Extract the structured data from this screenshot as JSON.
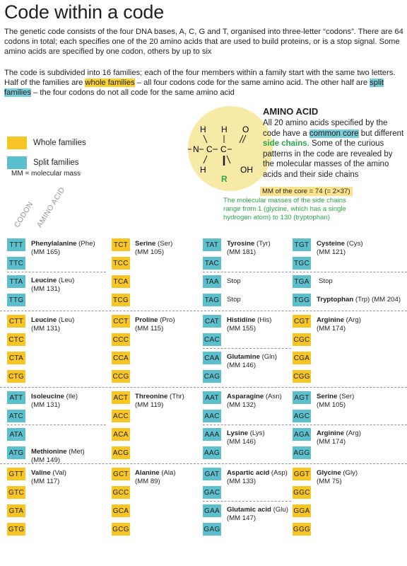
{
  "title": "Code within a code",
  "intro1": "The genetic code consists of the four DNA bases, A, C, G and T, organised into three-letter “codons”. There are 64 codons in total; each specifies one of the 20 amino acids that are used to build proteins, or is a stop signal. Some amino acids are specified by one codon, others by up to six",
  "intro2_a": "The code is subdivided into 16 families; each of the four members within a family start with the same two letters. Half of the families are ",
  "intro2_whole": "whole families",
  "intro2_b": " – all four codons code for the same amino acid. The other half are ",
  "intro2_split": "split families",
  "intro2_c": " – the four codons do not all code for the same amino acid",
  "legend": {
    "whole": "Whole families",
    "split": "Split families",
    "mm": "MM = molecular mass"
  },
  "col_headers": {
    "codon": "CODON",
    "amino": "AMINO ACID"
  },
  "colors": {
    "whole": "#f7c524",
    "split": "#5bbfcd",
    "green": "#2aa64a",
    "core_bg": "#f7eaa6"
  },
  "amino_acid": {
    "title": "AMINO ACID",
    "t1": "All 20 amino acids specified by the code have a ",
    "common_core": "common core",
    "t2": " but different ",
    "side_chains": "side chains",
    "t3": ". Some of the curious patterns in the code are revealed by the molecular masses of the amino acids and their side chains",
    "core_mm": "MM of the core = 74 (= 2×37)",
    "side_text": "The molecular masses of the side chains range from 1 (glycine, which has a single hydrogen atom) to 130 (tryptophan)",
    "molecule": {
      "h1": "H",
      "h2": "H",
      "h3": "H",
      "n": "N",
      "c1": "C",
      "c2": "C",
      "o1": "O",
      "oh": "OH",
      "r": "R",
      "dash": "–"
    }
  },
  "families": [
    [
      {
        "type": "b",
        "codons": [
          "TTT",
          "TTC",
          "TTA",
          "TTG"
        ],
        "labels": [
          {
            "row": 0,
            "name": "Phenylalanine",
            "abbr": "(Phe)",
            "mm": "(MM 165)"
          },
          {
            "row": 2,
            "name": "Leucine",
            "abbr": "(Leu)",
            "mm": "(MM 131)"
          }
        ]
      },
      {
        "type": "y",
        "codons": [
          "TCT",
          "TCC",
          "TCA",
          "TCG"
        ],
        "labels": [
          {
            "row": 0,
            "name": "Serine",
            "abbr": "(Ser)",
            "mm": "(MM 105)"
          }
        ]
      },
      {
        "type": "b",
        "codons": [
          "TAT",
          "TAC",
          "TAA",
          "TAG"
        ],
        "labels": [
          {
            "row": 0,
            "name": "Tyrosine",
            "abbr": "(Tyr)",
            "mm": "(MM 181)"
          }
        ],
        "stops": [
          {
            "row": 2,
            "text": "Stop"
          },
          {
            "row": 3,
            "text": "Stop"
          }
        ]
      },
      {
        "type": "b",
        "codons": [
          "TGT",
          "TGC",
          "TGA",
          "TGG"
        ],
        "labels": [
          {
            "row": 0,
            "name": "Cysteine",
            "abbr": "(Cys)",
            "mm": "(MM 121)"
          },
          {
            "row": 3,
            "name": "Tryptophan",
            "abbr": "(Trp)",
            "mm": "(MM 204)",
            "inline": true
          }
        ],
        "stops": [
          {
            "row": 2,
            "text": "Stop"
          }
        ]
      }
    ],
    [
      {
        "type": "y",
        "codons": [
          "CTT",
          "CTC",
          "CTA",
          "CTG"
        ],
        "labels": [
          {
            "row": 0,
            "name": "Leucine",
            "abbr": "(Leu)",
            "mm": "(MM 131)"
          }
        ]
      },
      {
        "type": "y",
        "codons": [
          "CCT",
          "CCC",
          "CCA",
          "CCG"
        ],
        "labels": [
          {
            "row": 0,
            "name": "Proline",
            "abbr": "(Pro)",
            "mm": "(MM 115)"
          }
        ]
      },
      {
        "type": "b",
        "codons": [
          "CAT",
          "CAC",
          "CAA",
          "CAG"
        ],
        "labels": [
          {
            "row": 0,
            "name": "Histidine",
            "abbr": "(His)",
            "mm": "(MM 155)"
          },
          {
            "row": 2,
            "name": "Glutamine",
            "abbr": "(Gln)",
            "mm": "(MM 146)"
          }
        ]
      },
      {
        "type": "y",
        "codons": [
          "CGT",
          "CGC",
          "CGA",
          "CGG"
        ],
        "labels": [
          {
            "row": 0,
            "name": "Arginine",
            "abbr": "(Arg)",
            "mm": "(MM 174)"
          }
        ]
      }
    ],
    [
      {
        "type": "b",
        "codons": [
          "ATT",
          "ATC",
          "ATA",
          "ATG"
        ],
        "labels": [
          {
            "row": 0,
            "name": "Isoleucine",
            "abbr": "(Ile)",
            "mm": "(MM 131)"
          },
          {
            "row": 3,
            "name": "Methionine",
            "abbr": "(Met)",
            "mm": "(MM 149)"
          }
        ]
      },
      {
        "type": "y",
        "codons": [
          "ACT",
          "ACC",
          "ACA",
          "ACG"
        ],
        "labels": [
          {
            "row": 0,
            "name": "Threonine",
            "abbr": "(Thr)",
            "mm": "(MM 119)"
          }
        ]
      },
      {
        "type": "b",
        "codons": [
          "AAT",
          "AAC",
          "AAA",
          "AAG"
        ],
        "labels": [
          {
            "row": 0,
            "name": "Asparagine",
            "abbr": "(Asn)",
            "mm": "(MM 132)"
          },
          {
            "row": 2,
            "name": "Lysine",
            "abbr": "(Lys)",
            "mm": "(MM 146)"
          }
        ]
      },
      {
        "type": "b",
        "codons": [
          "AGT",
          "AGC",
          "AGA",
          "AGG"
        ],
        "labels": [
          {
            "row": 0,
            "name": "Serine",
            "abbr": "(Ser)",
            "mm": "(MM 105)"
          },
          {
            "row": 2,
            "name": "Arginine",
            "abbr": "(Arg)",
            "mm": "(MM 174)"
          }
        ]
      }
    ],
    [
      {
        "type": "y",
        "codons": [
          "GTT",
          "GTC",
          "GTA",
          "GTG"
        ],
        "labels": [
          {
            "row": 0,
            "name": "Valine",
            "abbr": "(Val)",
            "mm": "(MM 117)"
          }
        ]
      },
      {
        "type": "y",
        "codons": [
          "GCT",
          "GCC",
          "GCA",
          "GCG"
        ],
        "labels": [
          {
            "row": 0,
            "name": "Alanine",
            "abbr": "(Ala)",
            "mm": "(MM 89)"
          }
        ]
      },
      {
        "type": "b",
        "codons": [
          "GAT",
          "GAC",
          "GAA",
          "GAG"
        ],
        "labels": [
          {
            "row": 0,
            "name": "Aspartic acid",
            "abbr": "(Asp)",
            "mm": "(MM 133)"
          },
          {
            "row": 2,
            "name": "Glutamic acid",
            "abbr": "(Glu)",
            "mm": "(MM 147)"
          }
        ]
      },
      {
        "type": "y",
        "codons": [
          "GGT",
          "GGC",
          "GGA",
          "GGG"
        ],
        "labels": [
          {
            "row": 0,
            "name": "Glycine",
            "abbr": "(Gly)",
            "mm": "(MM 75)"
          }
        ]
      }
    ]
  ]
}
